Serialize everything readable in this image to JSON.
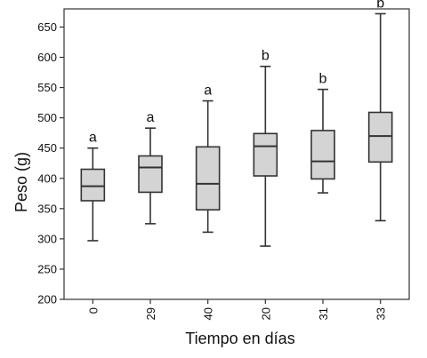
{
  "chart_data": {
    "type": "boxplot",
    "xlabel": "Tiempo en días",
    "ylabel": "Peso (g)",
    "ylim": [
      200,
      680
    ],
    "yticks": [
      200,
      250,
      300,
      350,
      400,
      450,
      500,
      550,
      600,
      650
    ],
    "grid": false,
    "box_fill": "#d4d4d4",
    "line_color": "#333333",
    "categories": [
      "0",
      "29",
      "40",
      "20",
      "31",
      "33"
    ],
    "boxes": [
      {
        "min": 297,
        "q1": 363,
        "median": 387,
        "q3": 415,
        "max": 450,
        "label": "a"
      },
      {
        "min": 325,
        "q1": 377,
        "median": 418,
        "q3": 437,
        "max": 483,
        "label": "a"
      },
      {
        "min": 311,
        "q1": 348,
        "median": 391,
        "q3": 452,
        "max": 528,
        "label": "a"
      },
      {
        "min": 288,
        "q1": 404,
        "median": 453,
        "q3": 474,
        "max": 585,
        "label": "b"
      },
      {
        "min": 376,
        "q1": 399,
        "median": 428,
        "q3": 479,
        "max": 547,
        "label": "b"
      },
      {
        "min": 330,
        "q1": 427,
        "median": 470,
        "q3": 509,
        "max": 672,
        "label": "b"
      }
    ]
  }
}
